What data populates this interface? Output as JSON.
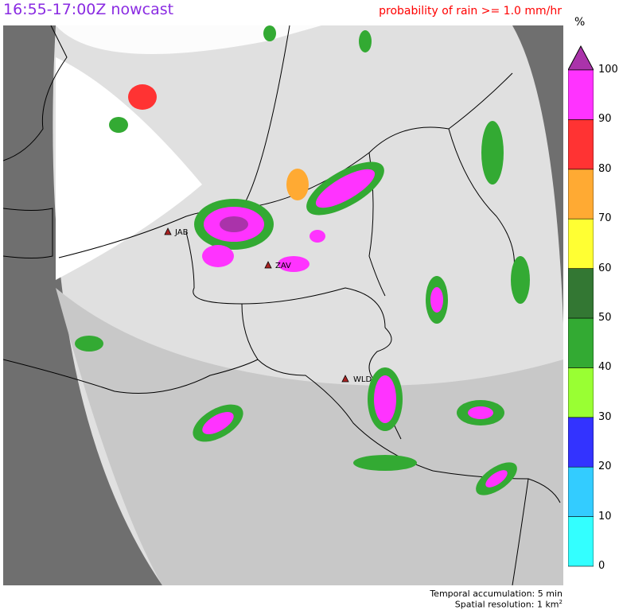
{
  "header": {
    "title": "16:55-17:00Z nowcast",
    "subtitle": "probability of rain >= 1.0 mm/hr"
  },
  "legend": {
    "unit": "%",
    "max_label": "100",
    "ticks": [
      "0",
      "10",
      "20",
      "30",
      "40",
      "50",
      "60",
      "70",
      "80",
      "90"
    ],
    "colors": [
      "#33ffff",
      "#33ccff",
      "#3333ff",
      "#99ff33",
      "#33aa33",
      "#337733",
      "#ffff33",
      "#ffaa33",
      "#ff3333",
      "#ff33ff"
    ],
    "overflow_color": "#aa33aa"
  },
  "stations": [
    {
      "name": "JAB"
    },
    {
      "name": "ZAV"
    },
    {
      "name": "WLD"
    }
  ],
  "footer": {
    "temporal": "Temporal accumulation: 5 min",
    "spatial": "Spatial resolution: 1 km",
    "spatial_sup": "2"
  }
}
